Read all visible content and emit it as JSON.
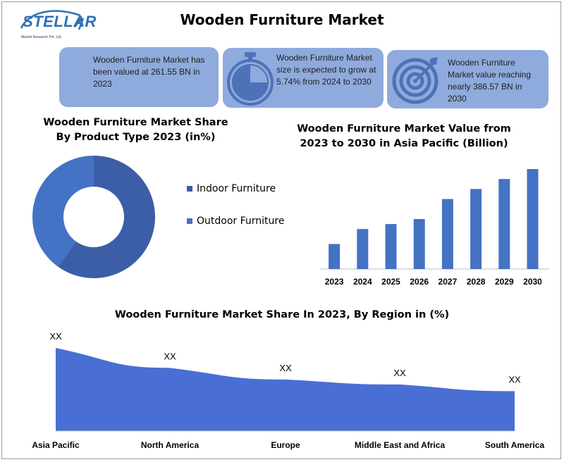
{
  "header": {
    "logo_text": "STELLAR",
    "logo_subtext": "Market Research Pvt. Ltd.",
    "title": "Wooden Furniture Market"
  },
  "colors": {
    "card_bg": "#8faadc",
    "icon_blue": "#4e72b8",
    "indoor": "#3c5ea6",
    "outdoor": "#4472c4",
    "bar": "#4472c4",
    "area": "#4a6fd4"
  },
  "cards": [
    {
      "text": "Wooden Furniture Market has been valued at 261.55 BN in 2023",
      "icon": ""
    },
    {
      "text": "Wooden Furniture Market size is expected to grow at 5.74% from 2024 to 2030",
      "icon": "stopwatch-icon"
    },
    {
      "text": "Wooden Furniture Market value reaching nearly 386.57 BN in 2030",
      "icon": "target-icon"
    }
  ],
  "donut": {
    "title": "Wooden Furniture Market Share By Product Type 2023 (in%)",
    "legend": [
      "Indoor Furniture",
      "Outdoor Furniture"
    ],
    "chart_data": {
      "type": "pie",
      "categories": [
        "Indoor Furniture",
        "Outdoor Furniture"
      ],
      "values": [
        60,
        40
      ]
    }
  },
  "bars": {
    "title": "Wooden Furniture Market Value from 2023 to 2030 in Asia Pacific (Billion)",
    "chart_data": {
      "type": "bar",
      "categories": [
        "2023",
        "2024",
        "2025",
        "2026",
        "2027",
        "2028",
        "2029",
        "2030"
      ],
      "values": [
        25,
        40,
        45,
        50,
        70,
        80,
        90,
        100
      ],
      "ylim": [
        0,
        100
      ]
    }
  },
  "area": {
    "title": "Wooden Furniture Market Share In 2023, By Region in (%)",
    "chart_data": {
      "type": "area",
      "categories": [
        "Asia Pacific",
        "North America",
        "Europe",
        "Middle East and Africa",
        "South America"
      ],
      "values": [
        100,
        76,
        62,
        56,
        48
      ],
      "data_labels": [
        "XX",
        "XX",
        "XX",
        "XX",
        "XX"
      ],
      "ylim": [
        0,
        100
      ]
    }
  },
  "chart_data": [
    {
      "type": "pie",
      "categories": [
        "Indoor Furniture",
        "Outdoor Furniture"
      ],
      "values": [
        60,
        40
      ]
    },
    {
      "type": "bar",
      "categories": [
        "2023",
        "2024",
        "2025",
        "2026",
        "2027",
        "2028",
        "2029",
        "2030"
      ],
      "values": [
        25,
        40,
        45,
        50,
        70,
        80,
        90,
        100
      ]
    },
    {
      "type": "area",
      "categories": [
        "Asia Pacific",
        "North America",
        "Europe",
        "Middle East and Africa",
        "South America"
      ],
      "values": [
        100,
        76,
        62,
        56,
        48
      ]
    }
  ]
}
